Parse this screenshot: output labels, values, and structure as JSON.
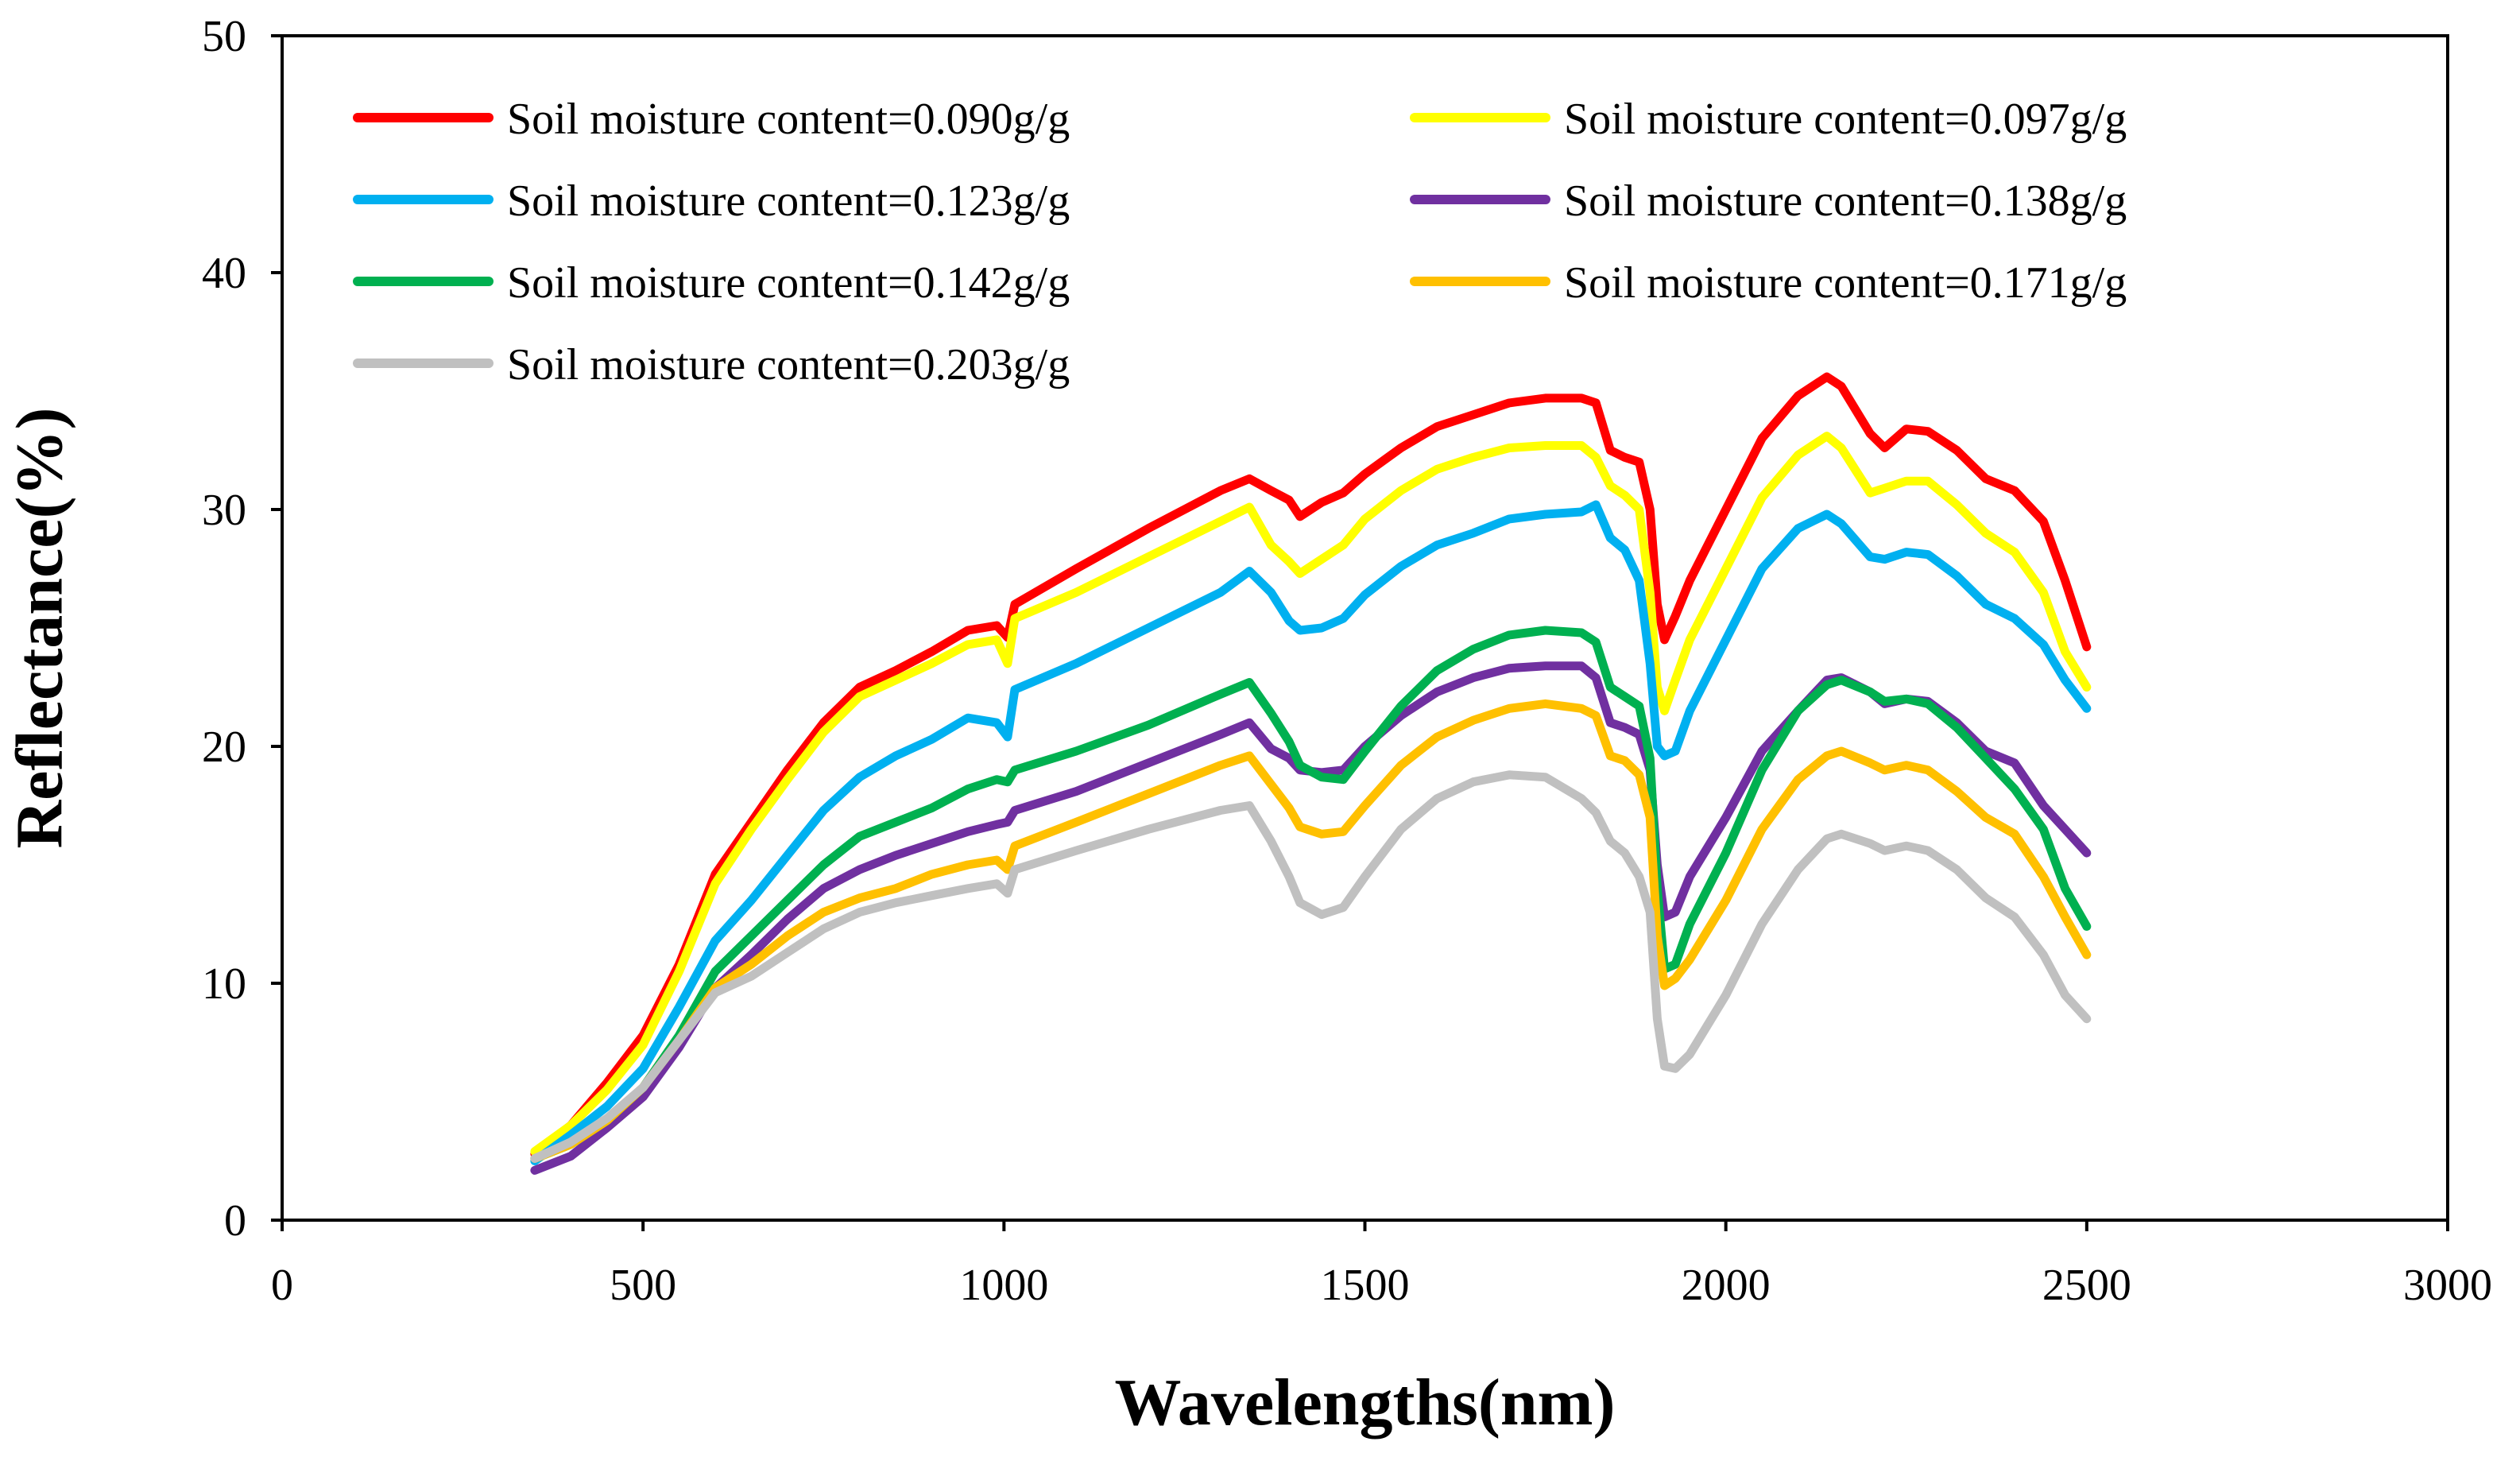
{
  "chart_data": {
    "type": "line",
    "title": "",
    "xlabel": "Wavelengths(nm)",
    "ylabel": "Reflectance(%)",
    "xlim": [
      0,
      3000
    ],
    "ylim": [
      0,
      50
    ],
    "xticks": [
      0,
      500,
      1000,
      1500,
      2000,
      2500,
      3000
    ],
    "yticks": [
      0,
      10,
      20,
      30,
      40,
      50
    ],
    "x_tick_labels": [
      "0",
      "500",
      "1000",
      "1500",
      "2000",
      "2500",
      "3000"
    ],
    "y_tick_labels": [
      "0",
      "10",
      "20",
      "30",
      "40",
      "50"
    ],
    "grid": false,
    "legend_position": "top-left",
    "x": [
      350,
      400,
      450,
      500,
      550,
      600,
      650,
      700,
      750,
      800,
      850,
      900,
      950,
      990,
      1005,
      1015,
      1100,
      1200,
      1300,
      1340,
      1370,
      1395,
      1410,
      1440,
      1470,
      1500,
      1550,
      1600,
      1650,
      1700,
      1750,
      1800,
      1820,
      1840,
      1860,
      1880,
      1895,
      1905,
      1915,
      1930,
      1950,
      2000,
      2050,
      2100,
      2140,
      2160,
      2200,
      2220,
      2250,
      2280,
      2320,
      2360,
      2400,
      2440,
      2470,
      2500
    ],
    "series": [
      {
        "name": "Soil moisture content=0.090g/g",
        "color": "#ff0000",
        "values": [
          2.8,
          4.0,
          5.8,
          7.8,
          10.8,
          14.6,
          16.8,
          19.0,
          21.0,
          22.5,
          23.2,
          24.0,
          24.9,
          25.1,
          24.6,
          26.0,
          27.5,
          29.2,
          30.8,
          31.3,
          30.8,
          30.4,
          29.7,
          30.3,
          30.7,
          31.5,
          32.6,
          33.5,
          34.0,
          34.5,
          34.7,
          34.7,
          34.5,
          32.5,
          32.2,
          32.0,
          30.0,
          26.0,
          24.5,
          25.5,
          27.0,
          30.0,
          33.0,
          34.8,
          35.6,
          35.2,
          33.2,
          32.6,
          33.4,
          33.3,
          32.5,
          31.3,
          30.8,
          29.5,
          27.0,
          24.2
        ]
      },
      {
        "name": "Soil moisture content=0.097g/g",
        "color": "#ffff00",
        "values": [
          2.9,
          4.0,
          5.5,
          7.4,
          10.5,
          14.2,
          16.5,
          18.6,
          20.6,
          22.1,
          22.8,
          23.5,
          24.3,
          24.5,
          23.5,
          25.4,
          26.5,
          28.0,
          29.5,
          30.1,
          28.5,
          27.8,
          27.3,
          27.9,
          28.5,
          29.6,
          30.8,
          31.7,
          32.2,
          32.6,
          32.7,
          32.7,
          32.2,
          31.0,
          30.6,
          30.0,
          26.5,
          22.5,
          21.5,
          22.8,
          24.5,
          27.5,
          30.5,
          32.3,
          33.1,
          32.6,
          30.7,
          30.9,
          31.2,
          31.2,
          30.2,
          29.0,
          28.2,
          26.5,
          24.0,
          22.5
        ]
      },
      {
        "name": "Soil moisture content=0.123g/g",
        "color": "#00b0f0",
        "values": [
          2.5,
          3.6,
          4.8,
          6.4,
          9.0,
          11.8,
          13.5,
          15.4,
          17.3,
          18.7,
          19.6,
          20.3,
          21.2,
          21.0,
          20.4,
          22.4,
          23.5,
          25.0,
          26.5,
          27.4,
          26.5,
          25.3,
          24.9,
          25.0,
          25.4,
          26.4,
          27.6,
          28.5,
          29.0,
          29.6,
          29.8,
          29.9,
          30.2,
          28.8,
          28.3,
          27.0,
          23.5,
          20.0,
          19.6,
          19.8,
          21.5,
          24.5,
          27.5,
          29.2,
          29.8,
          29.4,
          28.0,
          27.9,
          28.2,
          28.1,
          27.2,
          26.0,
          25.4,
          24.3,
          22.8,
          21.6
        ]
      },
      {
        "name": "Soil moisture content=0.138g/g",
        "color": "#7030a0",
        "values": [
          2.1,
          2.7,
          3.9,
          5.2,
          7.3,
          9.8,
          11.2,
          12.7,
          14.0,
          14.8,
          15.4,
          15.9,
          16.4,
          16.7,
          16.8,
          17.3,
          18.1,
          19.3,
          20.5,
          21.0,
          19.9,
          19.5,
          19.0,
          18.9,
          19.0,
          20.0,
          21.3,
          22.3,
          22.9,
          23.3,
          23.4,
          23.4,
          22.9,
          21.0,
          20.8,
          20.5,
          19.0,
          15.0,
          12.8,
          13.0,
          14.5,
          17.0,
          19.8,
          21.5,
          22.8,
          22.9,
          22.3,
          21.8,
          22.0,
          21.9,
          21.0,
          19.8,
          19.3,
          17.5,
          16.5,
          15.5
        ]
      },
      {
        "name": "Soil moisture content=0.142g/g",
        "color": "#00b050",
        "values": [
          2.6,
          3.2,
          4.2,
          5.6,
          7.8,
          10.5,
          12.0,
          13.5,
          15.0,
          16.2,
          16.8,
          17.4,
          18.2,
          18.6,
          18.5,
          19.0,
          19.8,
          20.9,
          22.2,
          22.7,
          21.4,
          20.2,
          19.2,
          18.7,
          18.6,
          19.8,
          21.7,
          23.2,
          24.1,
          24.7,
          24.9,
          24.8,
          24.4,
          22.5,
          22.1,
          21.7,
          19.5,
          14.0,
          10.6,
          10.8,
          12.5,
          15.5,
          19.0,
          21.5,
          22.6,
          22.8,
          22.3,
          21.9,
          22.0,
          21.8,
          20.8,
          19.5,
          18.2,
          16.5,
          14.0,
          12.4
        ]
      },
      {
        "name": "Soil moisture content=0.171g/g",
        "color": "#ffc000",
        "values": [
          2.6,
          3.2,
          4.2,
          5.6,
          7.6,
          9.8,
          10.8,
          12.0,
          13.0,
          13.6,
          14.0,
          14.6,
          15.0,
          15.2,
          14.8,
          15.8,
          16.8,
          18.0,
          19.2,
          19.6,
          18.4,
          17.4,
          16.6,
          16.3,
          16.4,
          17.5,
          19.2,
          20.4,
          21.1,
          21.6,
          21.8,
          21.6,
          21.3,
          19.6,
          19.4,
          18.8,
          17.0,
          12.0,
          9.9,
          10.2,
          11.0,
          13.5,
          16.5,
          18.6,
          19.6,
          19.8,
          19.3,
          19.0,
          19.2,
          19.0,
          18.1,
          17.0,
          16.3,
          14.5,
          12.8,
          11.2
        ]
      },
      {
        "name": "Soil moisture content=0.203g/g",
        "color": "#c0c0c0",
        "values": [
          2.6,
          3.3,
          4.3,
          5.6,
          7.6,
          9.6,
          10.3,
          11.3,
          12.3,
          13.0,
          13.4,
          13.7,
          14.0,
          14.2,
          13.8,
          14.8,
          15.6,
          16.5,
          17.3,
          17.5,
          16.0,
          14.5,
          13.4,
          12.9,
          13.2,
          14.5,
          16.5,
          17.8,
          18.5,
          18.8,
          18.7,
          17.8,
          17.2,
          16.0,
          15.5,
          14.5,
          13.0,
          8.5,
          6.5,
          6.4,
          7.0,
          9.5,
          12.5,
          14.8,
          16.1,
          16.3,
          15.9,
          15.6,
          15.8,
          15.6,
          14.8,
          13.6,
          12.8,
          11.2,
          9.5,
          8.5
        ]
      }
    ]
  }
}
